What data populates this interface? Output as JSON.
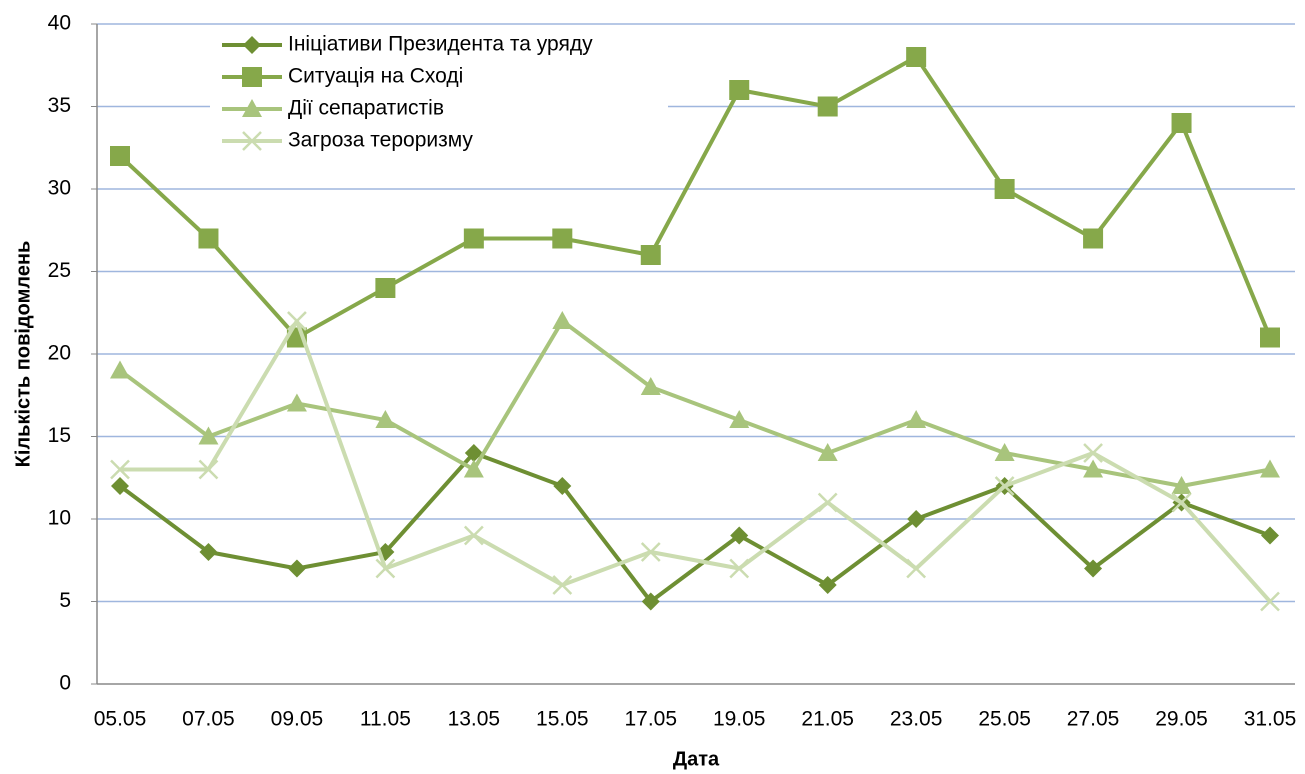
{
  "chart_data": {
    "type": "line",
    "xlabel": "Дата",
    "ylabel": "Кількість повідомлень",
    "categories": [
      "05.05",
      "07.05",
      "09.05",
      "11.05",
      "13.05",
      "15.05",
      "17.05",
      "19.05",
      "21.05",
      "23.05",
      "25.05",
      "27.05",
      "29.05",
      "31.05"
    ],
    "series": [
      {
        "name": "Ініціативи Президента та уряду",
        "color": "#6e8f33",
        "marker": "diamond",
        "values": [
          12,
          8,
          7,
          8,
          14,
          12,
          5,
          9,
          6,
          10,
          12,
          7,
          11,
          9
        ]
      },
      {
        "name": "Ситуація на Сході",
        "color": "#86a84a",
        "marker": "square",
        "values": [
          32,
          27,
          21,
          24,
          27,
          27,
          26,
          36,
          35,
          38,
          30,
          27,
          34,
          21
        ]
      },
      {
        "name": "Дії сепаратистів",
        "color": "#a8c47c",
        "marker": "triangle",
        "values": [
          19,
          15,
          17,
          16,
          13,
          22,
          18,
          16,
          14,
          16,
          14,
          13,
          12,
          13
        ]
      },
      {
        "name": "Загроза тероризму",
        "color": "#cbdcb0",
        "marker": "x",
        "values": [
          13,
          13,
          22,
          7,
          9,
          6,
          8,
          7,
          11,
          7,
          12,
          14,
          11,
          5
        ]
      }
    ],
    "ylim": [
      0,
      40
    ],
    "yticks": [
      0,
      5,
      10,
      15,
      20,
      25,
      30,
      35,
      40
    ],
    "grid": true,
    "legend": "upper left"
  }
}
